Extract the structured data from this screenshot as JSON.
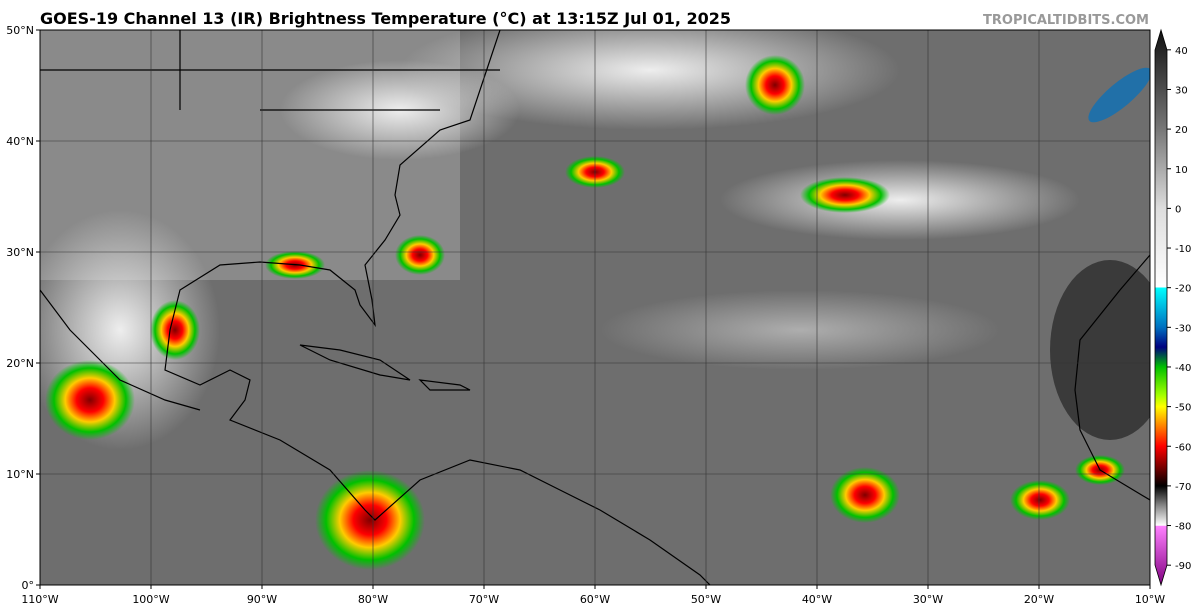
{
  "header": {
    "title": "GOES-19 Channel 13 (IR) Brightness Temperature (°C) at 13:15Z Jul 01, 2025",
    "credit": "TROPICALTIDBITS.COM"
  },
  "map": {
    "xlim": [
      -110,
      -10
    ],
    "ylim": [
      0,
      50
    ],
    "xticks": [
      {
        "value": -110,
        "label": "110°W"
      },
      {
        "value": -100,
        "label": "100°W"
      },
      {
        "value": -90,
        "label": "90°W"
      },
      {
        "value": -80,
        "label": "80°W"
      },
      {
        "value": -70,
        "label": "70°W"
      },
      {
        "value": -60,
        "label": "60°W"
      },
      {
        "value": -50,
        "label": "50°W"
      },
      {
        "value": -40,
        "label": "40°W"
      },
      {
        "value": -30,
        "label": "30°W"
      },
      {
        "value": -20,
        "label": "20°W"
      },
      {
        "value": -10,
        "label": "10°W"
      }
    ],
    "yticks": [
      {
        "value": 0,
        "label": "0°"
      },
      {
        "value": 10,
        "label": "10°N"
      },
      {
        "value": 20,
        "label": "20°N"
      },
      {
        "value": 30,
        "label": "30°N"
      },
      {
        "value": 40,
        "label": "40°N"
      },
      {
        "value": 50,
        "label": "50°N"
      }
    ],
    "grid": true
  },
  "colorbar": {
    "lim": [
      -95,
      45
    ],
    "ticks": [
      40,
      30,
      20,
      10,
      0,
      -10,
      -20,
      -30,
      -40,
      -50,
      -60,
      -70,
      -80,
      -90
    ],
    "stops": [
      {
        "value": 45,
        "color": "#111111"
      },
      {
        "value": 20,
        "color": "#777777"
      },
      {
        "value": 0,
        "color": "#dddddd"
      },
      {
        "value": -19.9,
        "color": "#ffffff"
      },
      {
        "value": -20,
        "color": "#00ffff"
      },
      {
        "value": -30,
        "color": "#0070c0"
      },
      {
        "value": -35,
        "color": "#000080"
      },
      {
        "value": -40,
        "color": "#00c000"
      },
      {
        "value": -47,
        "color": "#a0ff00"
      },
      {
        "value": -50,
        "color": "#ffff00"
      },
      {
        "value": -55,
        "color": "#ff8000"
      },
      {
        "value": -60,
        "color": "#ff0000"
      },
      {
        "value": -65,
        "color": "#800000"
      },
      {
        "value": -70,
        "color": "#000000"
      },
      {
        "value": -75,
        "color": "#888888"
      },
      {
        "value": -80,
        "color": "#ffffff"
      },
      {
        "value": -80.1,
        "color": "#ff80ff"
      },
      {
        "value": -95,
        "color": "#800080"
      }
    ]
  }
}
